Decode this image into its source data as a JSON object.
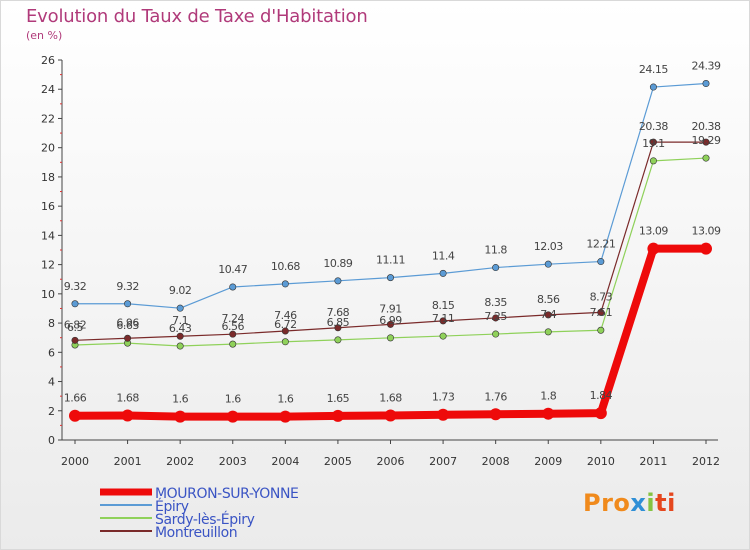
{
  "title": "Evolution du Taux de Taxe d'Habitation",
  "subtitle": "(en %)",
  "brand": "Proxiti",
  "chart_data": {
    "type": "line",
    "title": "Evolution du Taux de Taxe d'Habitation",
    "ylabel": "(en %)",
    "xlabel": "",
    "x": [
      "2000",
      "2001",
      "2002",
      "2003",
      "2004",
      "2005",
      "2006",
      "2007",
      "2008",
      "2009",
      "2010",
      "2011",
      "2012"
    ],
    "ylim": [
      0,
      26
    ],
    "yticks": [
      0,
      2,
      4,
      6,
      8,
      10,
      12,
      14,
      16,
      18,
      20,
      22,
      24,
      26
    ],
    "grid": false,
    "legend_position": "bottom-left",
    "series": [
      {
        "name": "MOURON-SUR-YONNE",
        "color": "#ee0a0a",
        "values": [
          1.66,
          1.68,
          1.6,
          1.6,
          1.6,
          1.65,
          1.68,
          1.73,
          1.76,
          1.8,
          1.84,
          13.09,
          13.09
        ],
        "labels": [
          "1.66",
          "1.68",
          "1.6",
          "1.6",
          "1.6",
          "1.65",
          "1.68",
          "1.73",
          "1.76",
          "1.8",
          "1.84",
          "13.09",
          "13.09"
        ]
      },
      {
        "name": "Épiry",
        "color": "#5b9bd5",
        "values": [
          9.32,
          9.32,
          9.02,
          10.47,
          10.68,
          10.89,
          11.11,
          11.4,
          11.8,
          12.03,
          12.21,
          24.15,
          24.39
        ],
        "labels": [
          "9.32",
          "9.32",
          "9.02",
          "10.47",
          "10.68",
          "10.89",
          "11.11",
          "11.4",
          "11.8",
          "12.03",
          "12.21",
          "24.15",
          "24.39"
        ]
      },
      {
        "name": "Sardy-lès-Épiry",
        "color": "#8fd15a",
        "values": [
          6.5,
          6.63,
          6.43,
          6.56,
          6.72,
          6.85,
          6.99,
          7.11,
          7.25,
          7.4,
          7.51,
          19.1,
          19.29
        ],
        "labels": [
          "6.5",
          "6.63",
          "6.43",
          "6.56",
          "6.72",
          "6.85",
          "6.99",
          "7.11",
          "7.25",
          "7.4",
          "7.51",
          "19.1",
          "19.29"
        ]
      },
      {
        "name": "Montreuillon",
        "color": "#7a2a2a",
        "values": [
          6.82,
          6.96,
          7.1,
          7.24,
          7.46,
          7.68,
          7.91,
          8.15,
          8.35,
          8.56,
          8.73,
          20.38,
          20.38
        ],
        "labels": [
          "6.82",
          "6.96",
          "7.1",
          "7.24",
          "7.46",
          "7.68",
          "7.91",
          "8.15",
          "8.35",
          "8.56",
          "8.73",
          "20.38",
          "20.38"
        ]
      }
    ]
  }
}
